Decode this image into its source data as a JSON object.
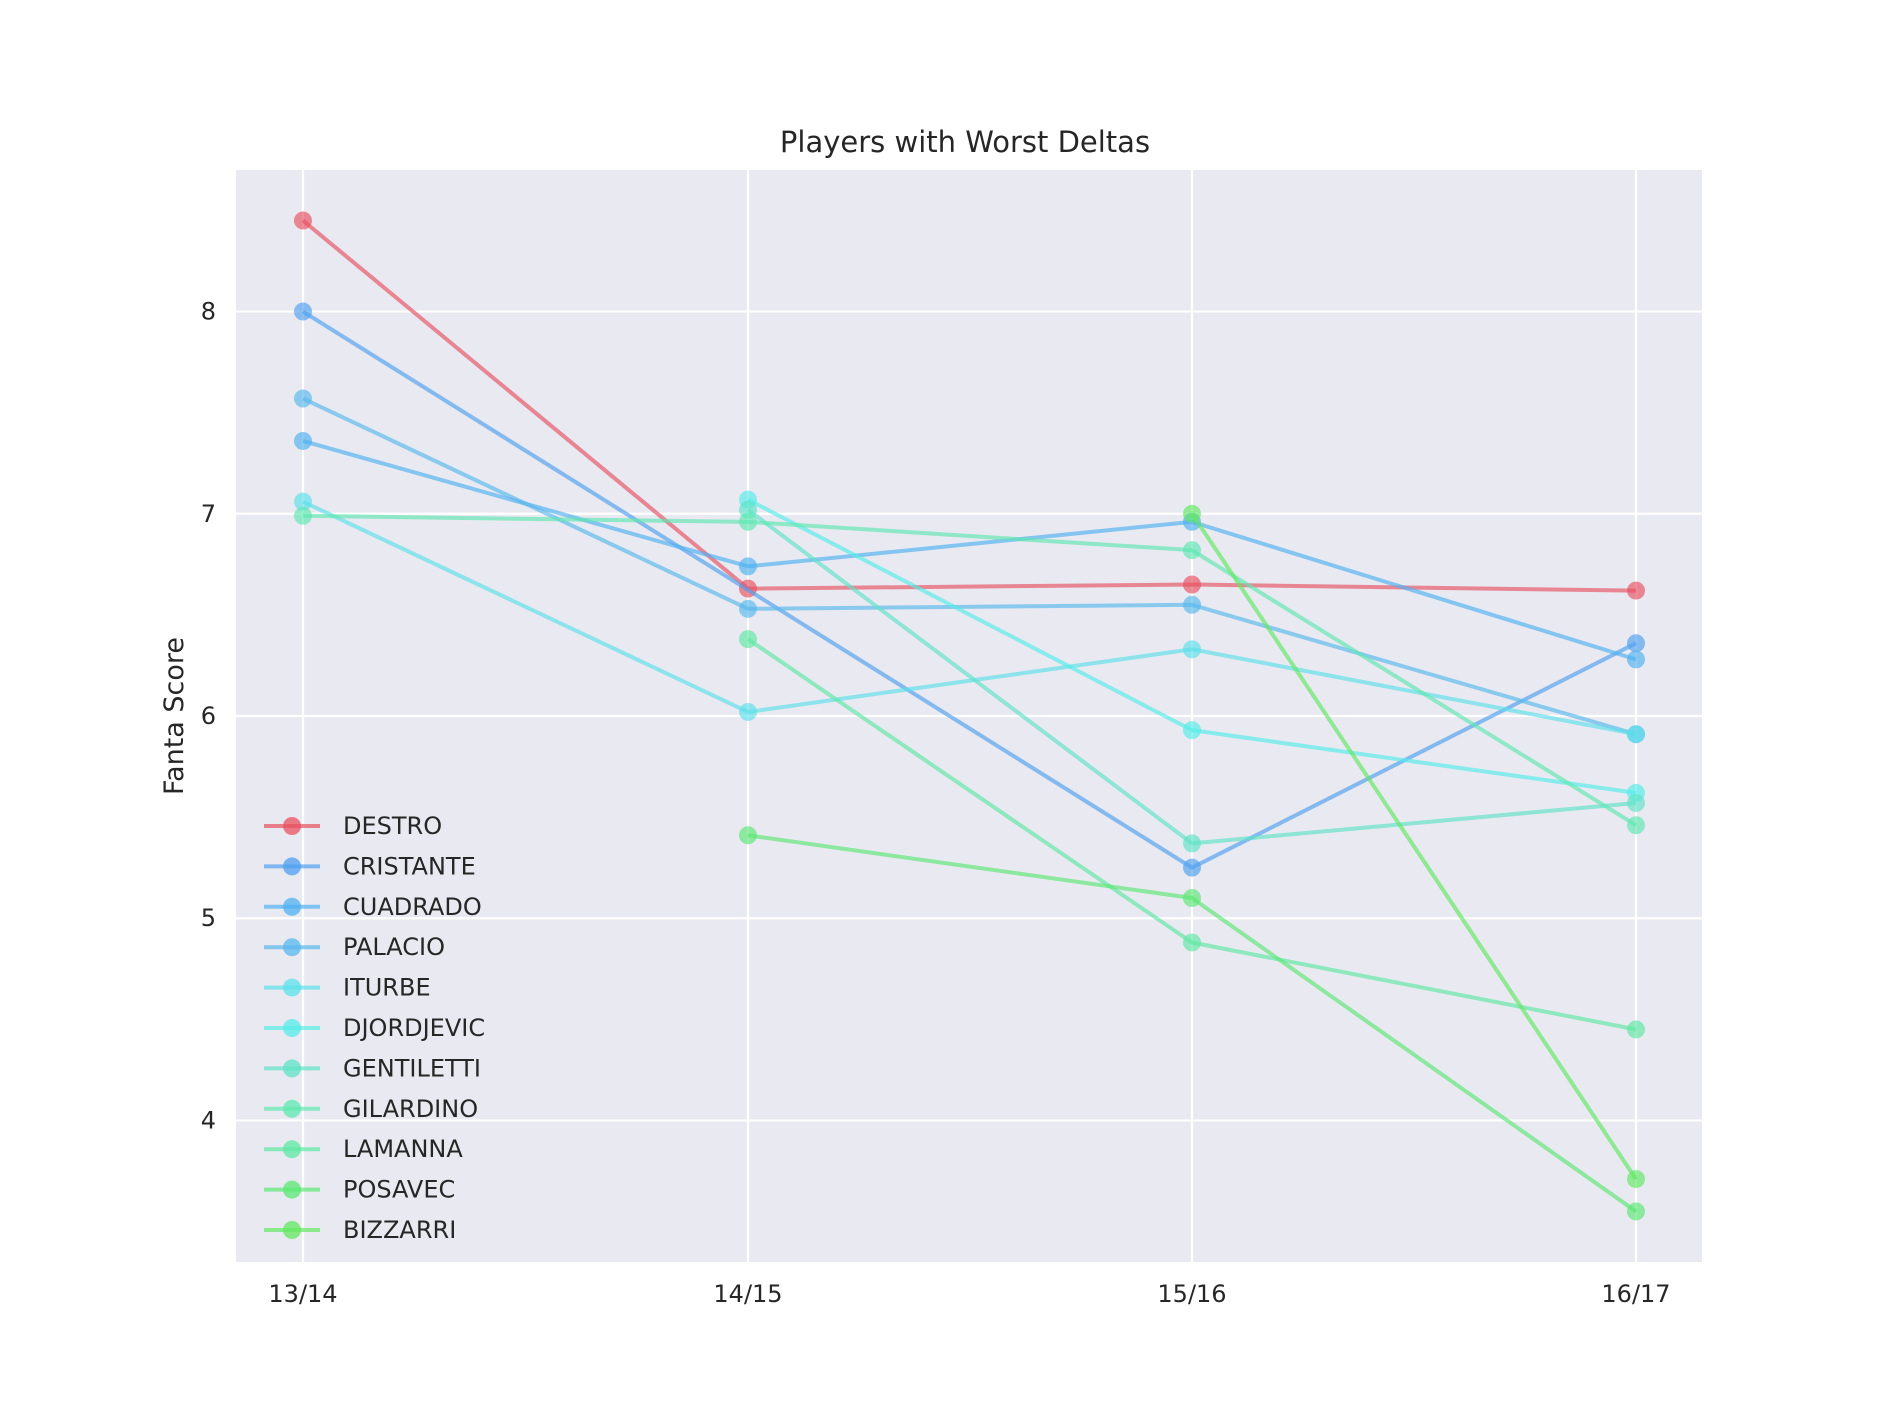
{
  "chart_data": {
    "type": "line",
    "title": "Players with Worst Deltas",
    "xlabel": "",
    "ylabel": "Fanta Score",
    "categories": [
      "13/14",
      "14/15",
      "15/16",
      "16/17"
    ],
    "yticks": [
      4,
      5,
      6,
      7,
      8
    ],
    "ylim": [
      3.3,
      8.7
    ],
    "grid": true,
    "legend_position": "lower-left",
    "series": [
      {
        "name": "DESTRO",
        "color": "#e8505f",
        "values": [
          8.45,
          6.63,
          6.65,
          6.62
        ]
      },
      {
        "name": "CRISTANTE",
        "color": "#4f9ff0",
        "values": [
          8.0,
          null,
          5.25,
          6.36
        ]
      },
      {
        "name": "CUADRADO",
        "color": "#4fb0f0",
        "values": [
          7.36,
          6.74,
          6.96,
          6.28
        ]
      },
      {
        "name": "PALACIO",
        "color": "#58b8ec",
        "values": [
          7.57,
          6.53,
          6.55,
          5.91
        ]
      },
      {
        "name": "ITURBE",
        "color": "#5ce1ea",
        "values": [
          7.06,
          6.02,
          6.33,
          5.91
        ]
      },
      {
        "name": "DJORDJEVIC",
        "color": "#55ece8",
        "values": [
          null,
          7.07,
          5.93,
          5.62
        ]
      },
      {
        "name": "GENTILETTI",
        "color": "#5ee3c6",
        "values": [
          null,
          7.02,
          5.37,
          5.57
        ]
      },
      {
        "name": "GILARDINO",
        "color": "#5ee8b0",
        "values": [
          6.99,
          6.96,
          6.82,
          5.46
        ]
      },
      {
        "name": "LAMANNA",
        "color": "#5de8a2",
        "values": [
          null,
          6.38,
          4.88,
          4.45
        ]
      },
      {
        "name": "POSAVEC",
        "color": "#5ae872",
        "values": [
          null,
          5.41,
          5.1,
          3.55
        ]
      },
      {
        "name": "BIZZARRI",
        "color": "#60e860",
        "values": [
          null,
          null,
          7.0,
          3.71
        ]
      }
    ]
  }
}
